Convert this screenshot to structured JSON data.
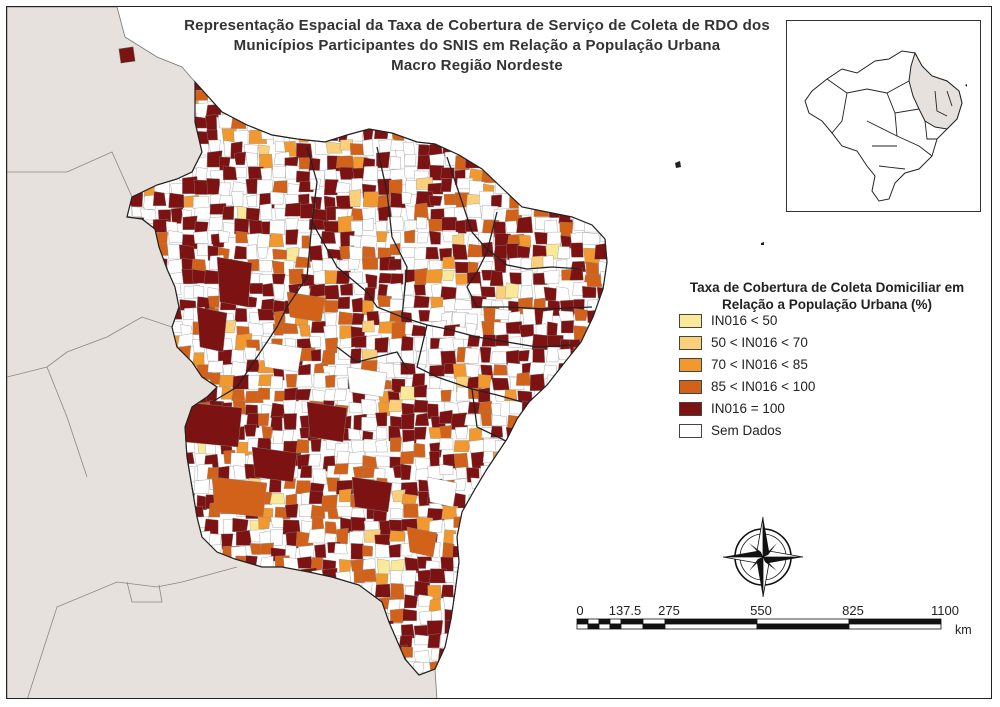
{
  "title": {
    "line1": "Representação Espacial da Taxa de Cobertura de Serviço de Coleta de RDO dos",
    "line2": "Municípios Participantes do SNIS em Relação a População Urbana",
    "line3": "Macro Região Nordeste"
  },
  "legend": {
    "title_line1": "Taxa de Cobertura de Coleta Domiciliar em",
    "title_line2": "Relação a População Urbana (%)",
    "items": [
      {
        "label": "IN016 < 50",
        "color": "#fbe99a"
      },
      {
        "label": "50 <  IN016 < 70",
        "color": "#fbd07a"
      },
      {
        "label": "70 < IN016 < 85",
        "color": "#f1992f"
      },
      {
        "label": "85 < IN016 < 100",
        "color": "#d2621a"
      },
      {
        "label": "IN016 = 100",
        "color": "#7c1212"
      },
      {
        "label": "Sem Dados",
        "color": "#ffffff"
      }
    ]
  },
  "scale_bar": {
    "ticks": [
      "0",
      "137.5",
      "275",
      "550",
      "825",
      "1100"
    ],
    "unit": "km"
  },
  "colors": {
    "neighbor_land": "#e6e1dc",
    "boundary": "#8a8a8a",
    "state_boundary": "#333333"
  },
  "icons": {
    "north_arrow": "compass-rose-icon"
  }
}
